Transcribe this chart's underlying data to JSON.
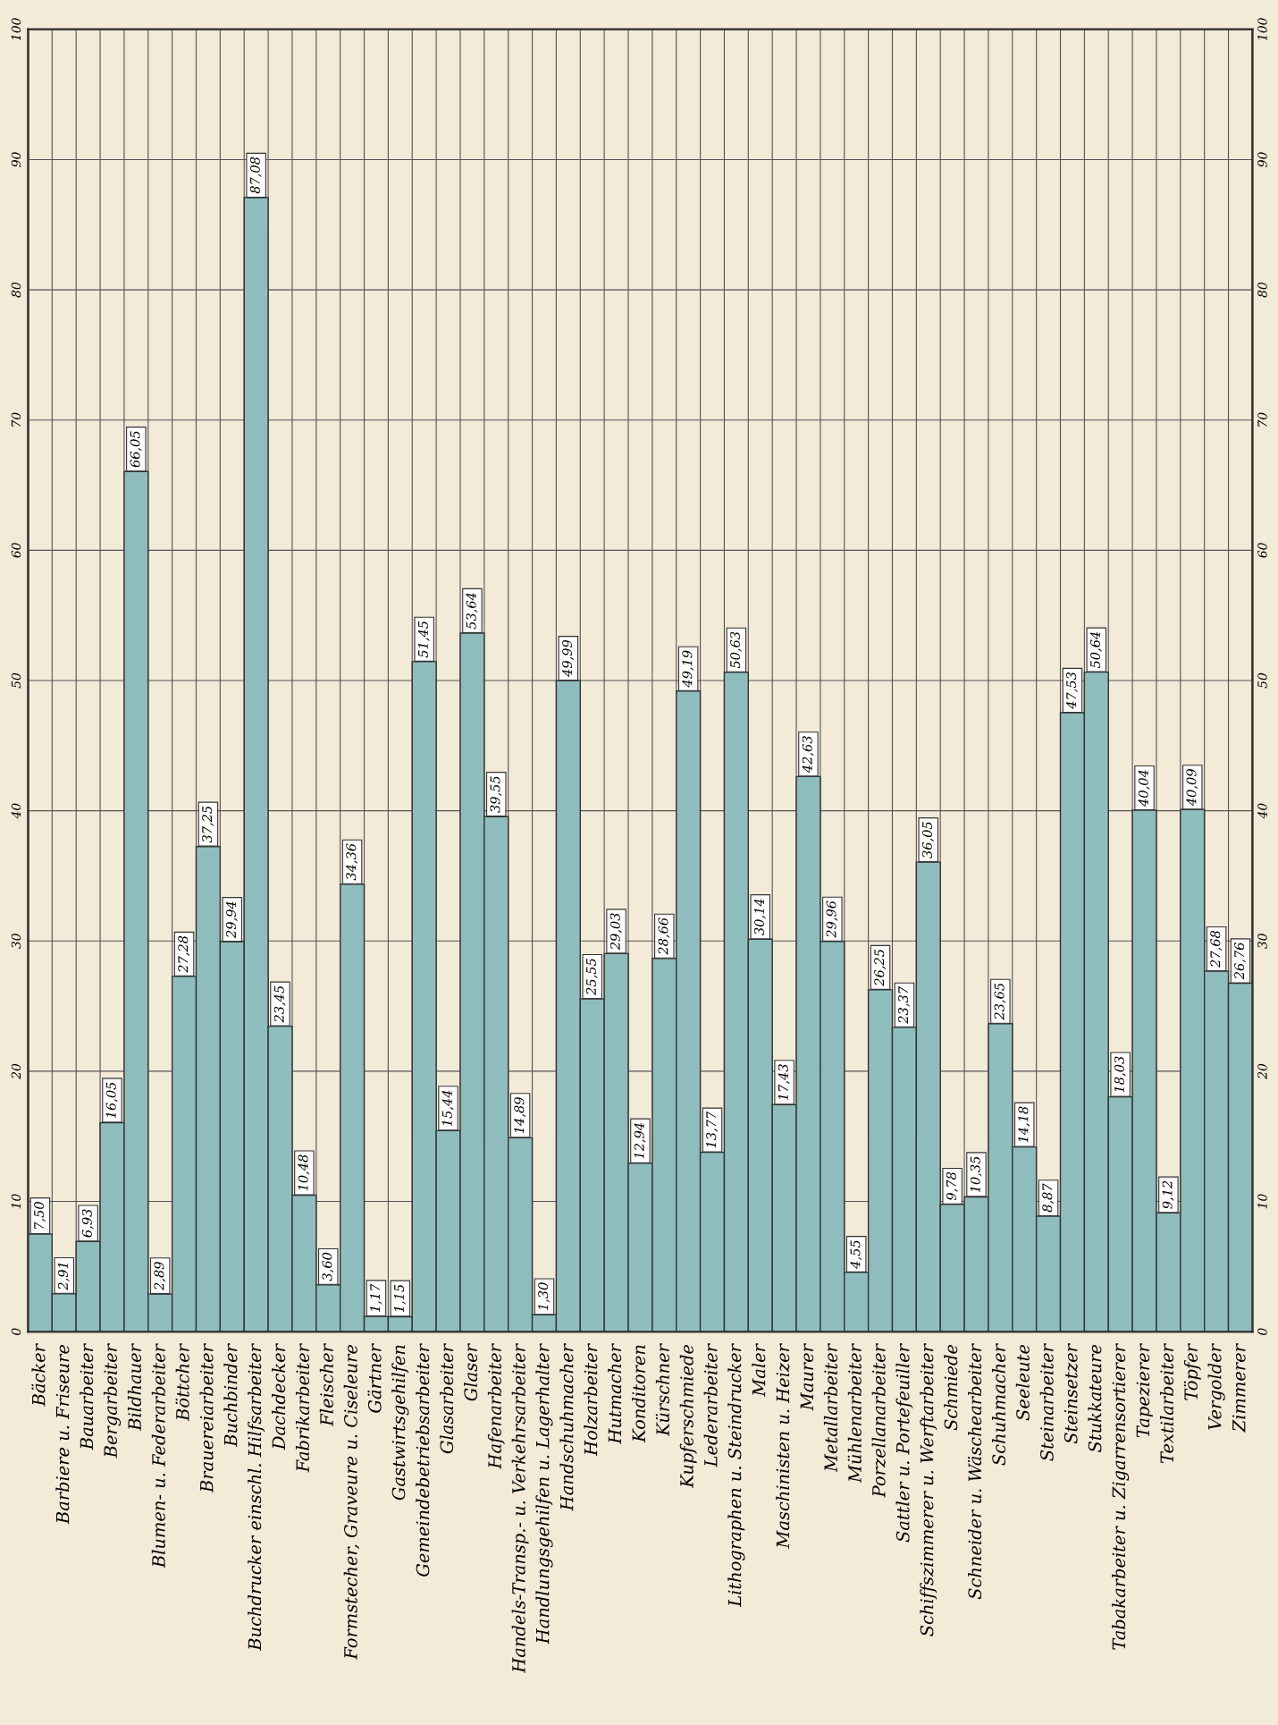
{
  "chart_data": {
    "type": "bar",
    "categories": [
      "Bäcker",
      "Barbiere u. Friseure",
      "Bauarbeiter",
      "Bergarbeiter",
      "Bildhauer",
      "Blumen- u. Federarbeiter",
      "Böttcher",
      "Brauereiarbeiter",
      "Buchbinder",
      "Buchdrucker einschl. Hilfsarbeiter",
      "Dachdecker",
      "Fabrikarbeiter",
      "Fleischer",
      "Formstecher, Graveure u. Ciseleure",
      "Gärtner",
      "Gastwirtsgehilfen",
      "Gemeindebetriebsarbeiter",
      "Glasarbeiter",
      "Glaser",
      "Hafenarbeiter",
      "Handels-Transp.- u. Verkehrsarbeiter",
      "Handlungsgehilfen u. Lagerhalter",
      "Handschuhmacher",
      "Holzarbeiter",
      "Hutmacher",
      "Konditoren",
      "Kürschner",
      "Kupferschmiede",
      "Lederarbeiter",
      "Lithographen u. Steindrucker",
      "Maler",
      "Maschinisten u. Heizer",
      "Maurer",
      "Metallarbeiter",
      "Mühlenarbeiter",
      "Porzellanarbeiter",
      "Sattler u. Portefeuiller",
      "Schiffszimmerer u. Werftarbeiter",
      "Schmiede",
      "Schneider u. Wäschearbeiter",
      "Schuhmacher",
      "Seeleute",
      "Steinarbeiter",
      "Steinsetzer",
      "Stukkateure",
      "Tabakarbeiter u. Zigarrensortierer",
      "Tapezierer",
      "Textilarbeiter",
      "Töpfer",
      "Vergolder",
      "Zimmerer"
    ],
    "values": [
      7.5,
      2.91,
      6.93,
      16.05,
      66.05,
      2.89,
      27.28,
      37.25,
      29.94,
      87.08,
      23.45,
      10.48,
      3.6,
      34.36,
      1.17,
      1.15,
      51.45,
      15.44,
      53.64,
      39.55,
      14.89,
      1.3,
      49.99,
      25.55,
      29.03,
      12.94,
      28.66,
      49.19,
      13.77,
      50.63,
      30.14,
      17.43,
      42.63,
      29.96,
      4.55,
      26.25,
      23.37,
      36.05,
      9.78,
      10.35,
      23.65,
      14.18,
      8.87,
      47.53,
      50.64,
      18.03,
      40.04,
      9.12,
      40.09,
      27.68,
      26.76
    ],
    "value_labels": [
      "7,50",
      "2,91",
      "6,93",
      "16,05",
      "66,05",
      "2,89",
      "27,28",
      "37,25",
      "29,94",
      "87,08",
      "23,45",
      "10,48",
      "3,60",
      "34,36",
      "1,17",
      "1,15",
      "51,45",
      "15,44",
      "53,64",
      "39,55",
      "14,89",
      "1,30",
      "49,99",
      "25,55",
      "29,03",
      "12,94",
      "28,66",
      "49,19",
      "13,77",
      "50,63",
      "30,14",
      "17,43",
      "42,63",
      "29,96",
      "4,55",
      "26,25",
      "23,37",
      "36,05",
      "9,78",
      "10,35",
      "23,65",
      "14,18",
      "8,87",
      "47,53",
      "50,64",
      "18,03",
      "40,04",
      "9,12",
      "40,09",
      "27,68",
      "26,76"
    ],
    "color": "#8fbdbd",
    "ylim": [
      0,
      100
    ],
    "yticks": [
      0,
      10,
      20,
      30,
      40,
      50,
      60,
      70,
      80,
      90,
      100
    ],
    "y2lim": [
      0,
      100
    ],
    "y2ticks": [
      0,
      10,
      20,
      30,
      40,
      50,
      60,
      70,
      80,
      90,
      100
    ],
    "grid": true
  }
}
